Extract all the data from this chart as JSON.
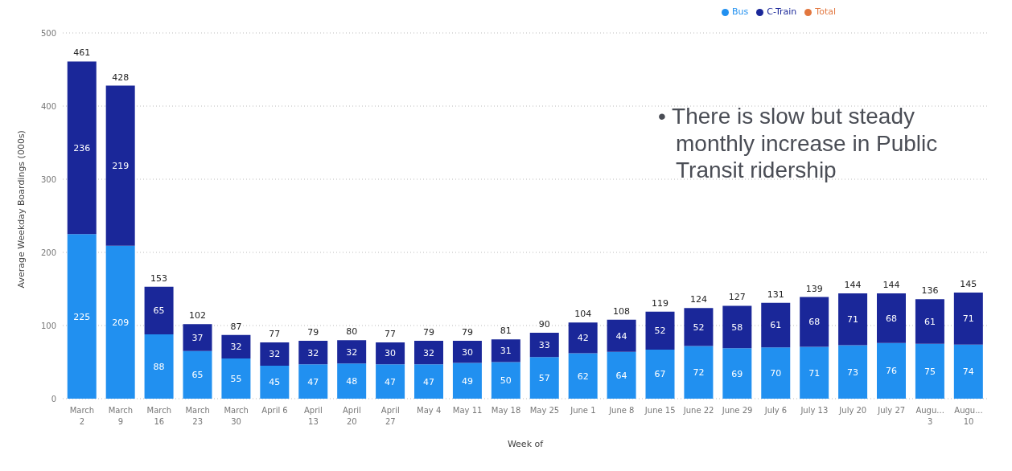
{
  "chart_data": {
    "type": "bar",
    "stacked": true,
    "xlabel": "Week of",
    "ylabel": "Average Weekday Boardings (000s)",
    "categories": [
      "March 2",
      "March 9",
      "March 16",
      "March 23",
      "March 30",
      "April 6",
      "April 13",
      "April 20",
      "April 27",
      "May 4",
      "May 11",
      "May 18",
      "May 25",
      "June 1",
      "June 8",
      "June 15",
      "June 22",
      "June 29",
      "July 6",
      "July 13",
      "July 20",
      "July 27",
      "Augu... 3",
      "Augu... 10"
    ],
    "series": [
      {
        "name": "Bus",
        "color": "#2190f0",
        "values": [
          225,
          209,
          88,
          65,
          55,
          45,
          47,
          48,
          47,
          47,
          49,
          50,
          57,
          62,
          64,
          67,
          72,
          69,
          70,
          71,
          73,
          76,
          75,
          74
        ]
      },
      {
        "name": "C-Train",
        "color": "#1a2799",
        "values": [
          236,
          219,
          65,
          37,
          32,
          32,
          32,
          32,
          30,
          32,
          30,
          31,
          33,
          42,
          44,
          52,
          52,
          58,
          61,
          68,
          71,
          68,
          61,
          71
        ]
      },
      {
        "name": "Total",
        "type": "line",
        "color": "#e2773f",
        "values": [
          null,
          null,
          null,
          null,
          null,
          null,
          null,
          null,
          null,
          null,
          null,
          null,
          null,
          null,
          null,
          null,
          null,
          null,
          null,
          null,
          null,
          null,
          null,
          null
        ]
      }
    ],
    "totals": [
      "461",
      "428",
      "153",
      "102",
      "87",
      "77",
      "79",
      "80",
      "77",
      "79",
      "79",
      "81",
      "90",
      "104",
      "108",
      "119",
      "124",
      "127",
      "131",
      "139",
      "144",
      "144",
      "136",
      "145"
    ],
    "ylim": [
      0,
      500
    ],
    "yticks": [
      0,
      100,
      200,
      300,
      400,
      500
    ],
    "grid": "y",
    "legend": "top",
    "data_labels": true,
    "annotations": [
      "• There is slow but steady monthly increase in Public Transit ridership"
    ]
  }
}
